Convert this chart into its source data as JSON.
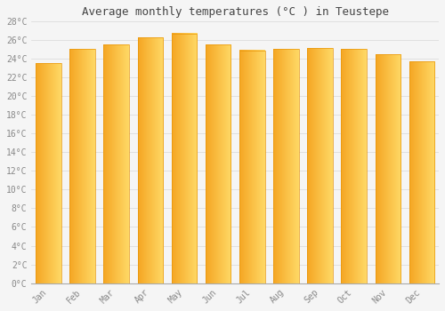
{
  "title": "Average monthly temperatures (°C ) in Teustepe",
  "months": [
    "Jan",
    "Feb",
    "Mar",
    "Apr",
    "May",
    "Jun",
    "Jul",
    "Aug",
    "Sep",
    "Oct",
    "Nov",
    "Dec"
  ],
  "values": [
    23.5,
    25.0,
    25.5,
    26.3,
    26.7,
    25.5,
    24.9,
    25.0,
    25.1,
    25.0,
    24.5,
    23.7
  ],
  "bar_color_left": "#F5A623",
  "bar_color_right": "#FFD966",
  "bar_edge_color": "#E8960A",
  "ylim": [
    0,
    28
  ],
  "background_color": "#f5f5f5",
  "grid_color": "#dddddd",
  "title_fontsize": 9,
  "tick_fontsize": 7,
  "tick_label_color": "#888888",
  "title_color": "#444444",
  "bar_width": 0.75
}
